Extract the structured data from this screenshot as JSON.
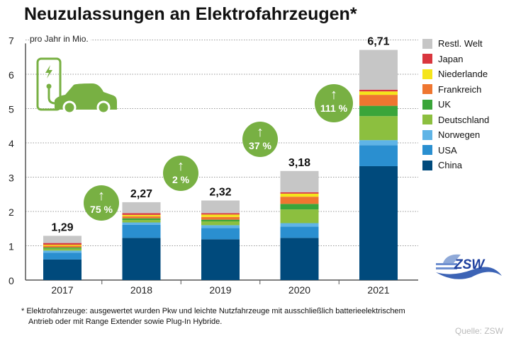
{
  "title": "Neuzulassungen an Elektrofahrzeugen*",
  "unit_label": "pro Jahr in Mio.",
  "footnote": [
    "* Elektrofahrzeuge: ausgewertet wurden Pkw und leichte Nutzfahrzeuge mit ausschließlich batterieelektrischem",
    "Antrieb oder mit Range Extender sowie Plug-In Hybride."
  ],
  "source": "Quelle: ZSW",
  "logo_text": "ZSW",
  "growth": [
    "75 %",
    "2 %",
    "37 %",
    "111 %"
  ],
  "chart_data": {
    "type": "bar",
    "stacked": true,
    "categories": [
      "2017",
      "2018",
      "2019",
      "2020",
      "2021"
    ],
    "totals": [
      "1,29",
      "2,27",
      "2,32",
      "3,18",
      "6,71"
    ],
    "ylim": [
      0,
      7
    ],
    "yticks": [
      0,
      1,
      2,
      3,
      4,
      5,
      6,
      7
    ],
    "grid": true,
    "legend_position": "right",
    "series": [
      {
        "name": "China",
        "color": "#004a7c",
        "values": [
          0.6,
          1.23,
          1.19,
          1.23,
          3.32
        ]
      },
      {
        "name": "USA",
        "color": "#2a8fd0",
        "values": [
          0.2,
          0.38,
          0.33,
          0.33,
          0.61
        ]
      },
      {
        "name": "Norwegen",
        "color": "#5fb4e6",
        "values": [
          0.06,
          0.07,
          0.08,
          0.1,
          0.15
        ]
      },
      {
        "name": "Deutschland",
        "color": "#8cbf3f",
        "values": [
          0.06,
          0.07,
          0.11,
          0.4,
          0.7
        ]
      },
      {
        "name": "UK",
        "color": "#3aa53a",
        "values": [
          0.03,
          0.05,
          0.05,
          0.16,
          0.3
        ]
      },
      {
        "name": "Frankreich",
        "color": "#ef7630",
        "values": [
          0.05,
          0.06,
          0.08,
          0.21,
          0.32
        ]
      },
      {
        "name": "Niederlande",
        "color": "#f5e51b",
        "values": [
          0.03,
          0.04,
          0.07,
          0.09,
          0.1
        ]
      },
      {
        "name": "Japan",
        "color": "#d9363e",
        "values": [
          0.05,
          0.05,
          0.04,
          0.04,
          0.05
        ]
      },
      {
        "name": "Restl. Welt",
        "color": "#c6c6c6",
        "values": [
          0.21,
          0.32,
          0.37,
          0.62,
          1.16
        ]
      }
    ]
  }
}
